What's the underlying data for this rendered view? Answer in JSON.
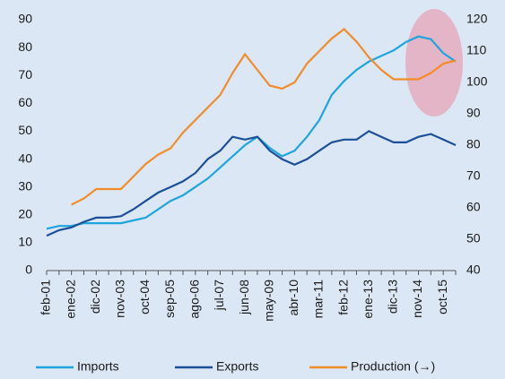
{
  "chart_data": {
    "type": "line",
    "categories": [
      "feb-01",
      null,
      "ene-02",
      null,
      "dic-02",
      null,
      "nov-03",
      null,
      "oct-04",
      null,
      "sep-05",
      null,
      "ago-06",
      null,
      "jul-07",
      null,
      "jun-08",
      null,
      "may-09",
      null,
      "abr-10",
      null,
      "mar-11",
      null,
      "feb-12",
      null,
      "ene-13",
      null,
      "dic-13",
      null,
      "nov-14",
      null,
      "oct-15",
      null
    ],
    "series": [
      {
        "name": "Imports",
        "color": "#1ea5de",
        "values": [
          15,
          16,
          16,
          17,
          17,
          17,
          17,
          18,
          19,
          22,
          25,
          27,
          30,
          33,
          37,
          41,
          45,
          48,
          44,
          41,
          43,
          48,
          54,
          63,
          68,
          72,
          75,
          77,
          79,
          82,
          84,
          83,
          78,
          75
        ]
      },
      {
        "name": "Exports",
        "color": "#1d4f98",
        "values": [
          12.5,
          14.5,
          15.5,
          17.5,
          19,
          19,
          19.5,
          22,
          25,
          28,
          30,
          32,
          35,
          40,
          43,
          48,
          47,
          48,
          43,
          40,
          38,
          40,
          43,
          46,
          47,
          47,
          50,
          48,
          46,
          46,
          48,
          49,
          47,
          45
        ]
      },
      {
        "name": "Production (→)",
        "color": "#f28c28",
        "axis": "y2",
        "values": [
          null,
          null,
          61,
          63,
          66,
          66,
          66,
          70,
          74,
          77,
          79,
          84,
          88,
          92,
          96,
          103,
          109,
          104,
          99,
          98,
          100,
          106,
          110,
          114,
          117,
          113,
          108,
          104,
          101,
          101,
          101,
          103,
          106,
          107
        ]
      }
    ],
    "ylim": [
      0,
      90
    ],
    "yticks": [
      0,
      10,
      20,
      30,
      40,
      50,
      60,
      70,
      80,
      90
    ],
    "y2lim": [
      40,
      120
    ],
    "y2ticks": [
      40,
      50,
      60,
      70,
      80,
      90,
      100,
      110,
      120
    ],
    "legend": "bottom"
  }
}
